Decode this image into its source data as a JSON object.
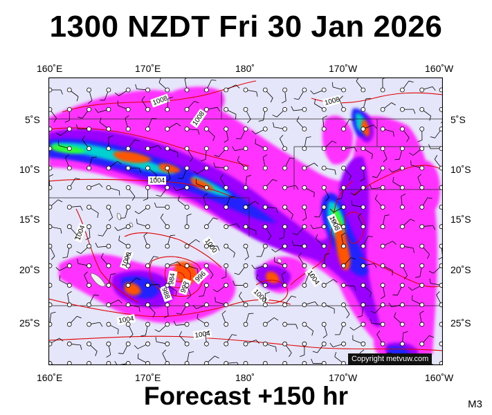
{
  "header": {
    "title": "1300 NZDT Fri 30 Jan 2026"
  },
  "footer": {
    "forecast": "Forecast +150 hr",
    "model": "M3"
  },
  "map": {
    "lon_labels_top": [
      "160˚E",
      "170˚E",
      "180˚",
      "170˚W",
      "160˚W"
    ],
    "lon_labels_bottom": [
      "160˚E",
      "170˚E",
      "180˚",
      "170˚W",
      "160˚W"
    ],
    "lat_labels_left": [
      "5˚S",
      "10˚S",
      "15˚S",
      "20˚S",
      "25˚S"
    ],
    "lat_labels_right": [
      "5˚S",
      "10˚S",
      "15˚S",
      "20˚S",
      "25˚S"
    ],
    "pressure_labels": [
      "1008",
      "1008",
      "1008",
      "1004",
      "1004",
      "1000",
      "1000",
      "1004",
      "1008",
      "996",
      "992",
      "988",
      "984",
      "1004",
      "1000",
      "1004"
    ],
    "copyright": "Copyright metvuw.com",
    "colors": {
      "ocean": "#e6e6fa",
      "isobar": "#e00000",
      "rain_light": "#ff33ff",
      "rain_moderate": "#9900ff",
      "rain_heavy": "#2222ff",
      "rain_very_heavy": "#00d0d0",
      "rain_intense": "#33ff33",
      "rain_extreme": "#ff5500",
      "wind_barb": "#000000"
    }
  }
}
